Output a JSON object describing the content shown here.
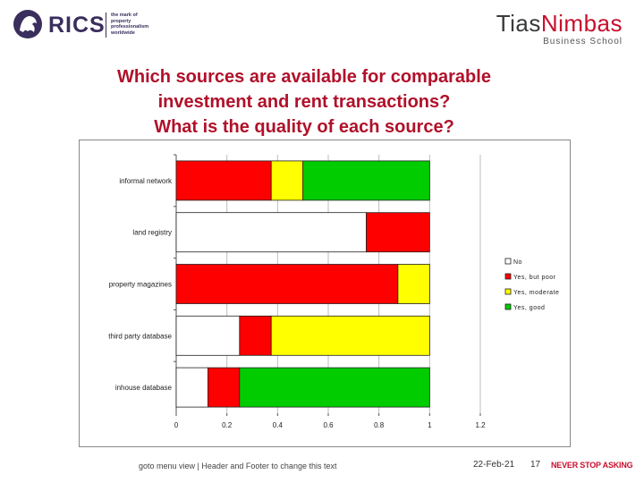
{
  "header": {
    "rics_logo_text": "RICS",
    "rics_tagline": "the mark of property professionalism worldwide",
    "tias_logo_text_a": "Tias",
    "tias_logo_text_b": "Nimbas",
    "tias_sub": "Business School"
  },
  "title_lines": [
    "Which sources are available for comparable",
    "investment and rent transactions?",
    "What is the quality of each source?"
  ],
  "chart_data": {
    "type": "bar",
    "orientation": "horizontal",
    "stacked": true,
    "categories": [
      "informal network",
      "land registry",
      "property magazines",
      "third party database",
      "inhouse database"
    ],
    "series": [
      {
        "name": "No",
        "color": "#ffffff",
        "values": [
          0,
          0.75,
          0,
          0.25,
          0.125
        ]
      },
      {
        "name": "Yes, but poor",
        "color": "#ff0000",
        "values": [
          0.375,
          0.25,
          0.875,
          0.125,
          0.125
        ]
      },
      {
        "name": "Yes, moderate",
        "color": "#ffff00",
        "values": [
          0.125,
          0,
          0.125,
          0.625,
          0
        ]
      },
      {
        "name": "Yes, good",
        "color": "#00cc00",
        "values": [
          0.5,
          0,
          0,
          0,
          0.75
        ]
      }
    ],
    "xlim": [
      0,
      1.2
    ],
    "xticks": [
      "0",
      "0.2",
      "0.4",
      "0.6",
      "0.8",
      "1",
      "1.2"
    ],
    "grid": true,
    "legend_position": "right",
    "legend_labels": [
      "No",
      "Yes, but poor",
      "Yes, moderate",
      "Yes, good"
    ]
  },
  "footer": {
    "left_text": "goto menu view | Header and Footer to change this text",
    "date": "22-Feb-21",
    "page": "17",
    "slogan": "NEVER STOP ASKING"
  }
}
